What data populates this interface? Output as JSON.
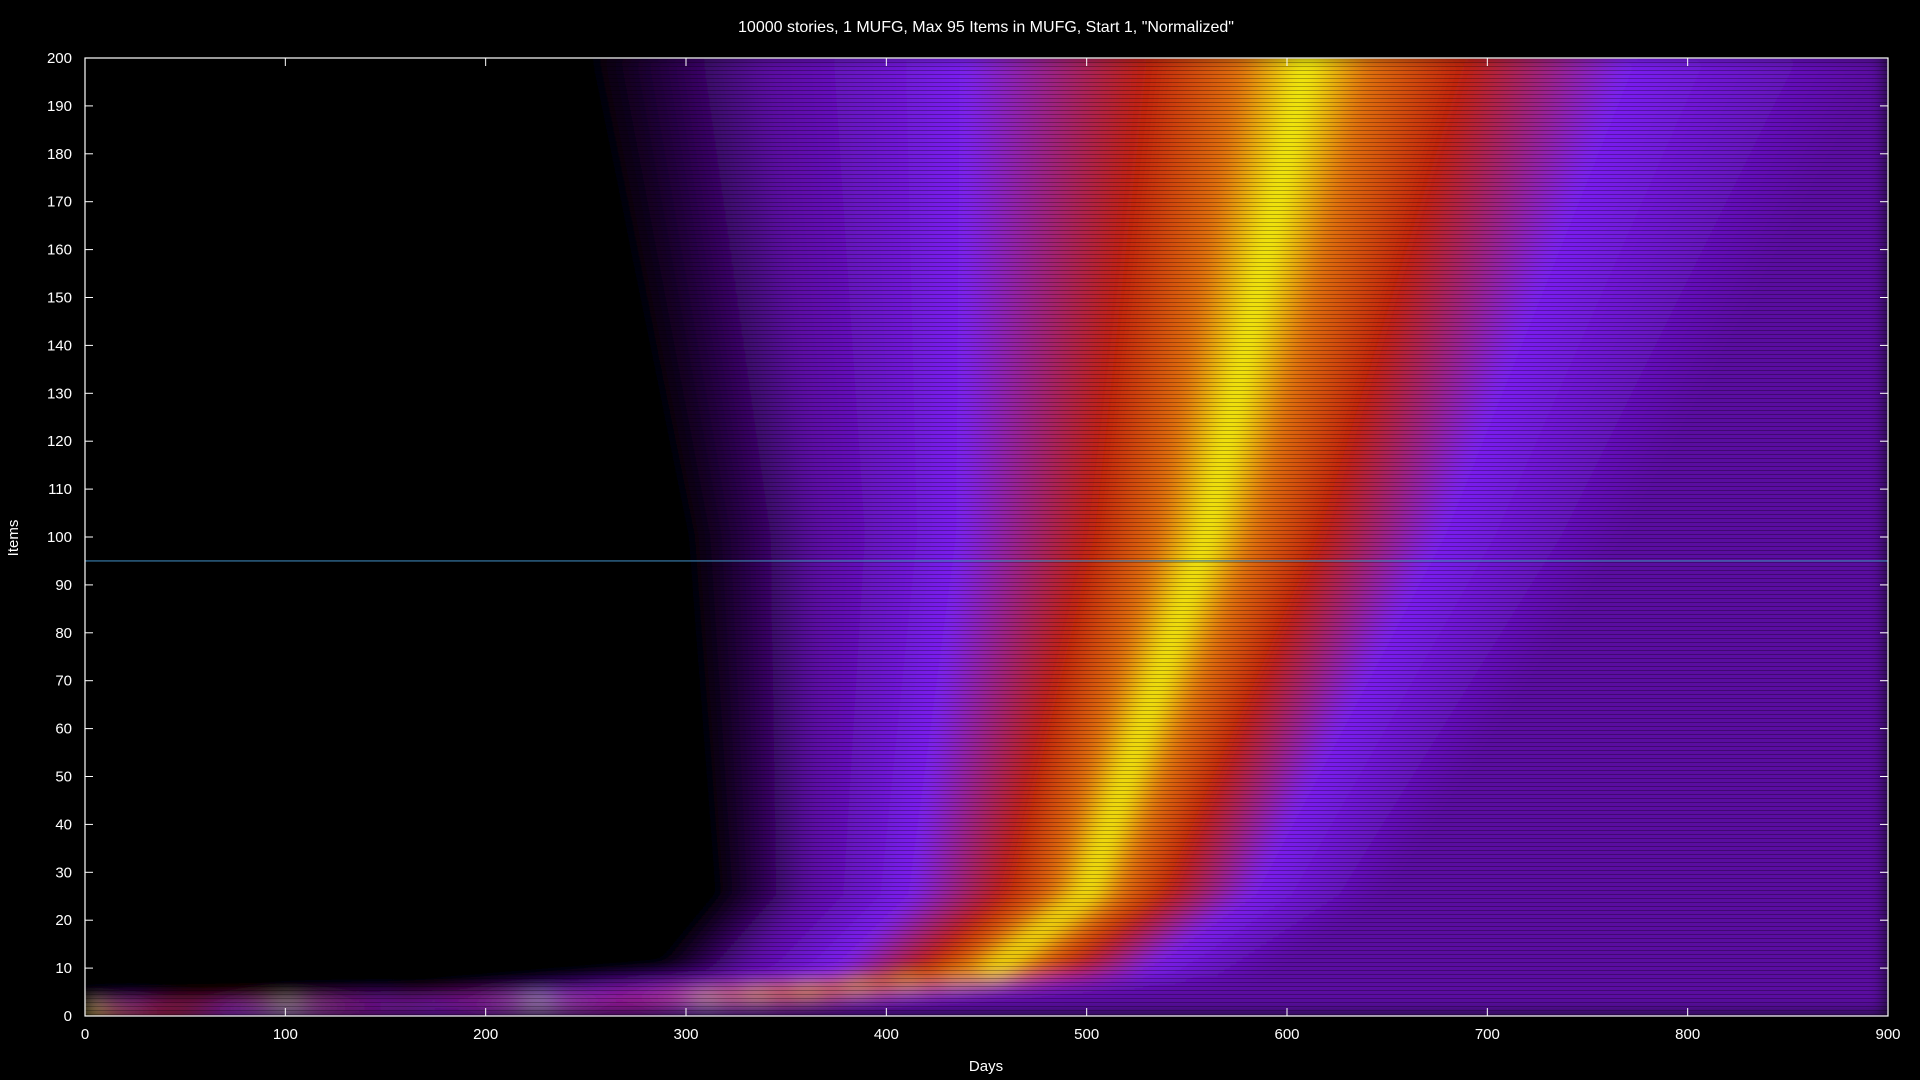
{
  "chart_data": {
    "type": "heatmap",
    "title": "10000 stories, 1 MUFG, Max 95 Items in MUFG, Start 1, \"Normalized\"",
    "xlabel": "Days",
    "ylabel": "Items",
    "xlim": [
      0,
      900
    ],
    "ylim": [
      0,
      200
    ],
    "xticks": [
      0,
      100,
      200,
      300,
      400,
      500,
      600,
      700,
      800,
      900
    ],
    "yticks": [
      0,
      10,
      20,
      30,
      40,
      50,
      60,
      70,
      80,
      90,
      100,
      110,
      120,
      130,
      140,
      150,
      160,
      170,
      180,
      190,
      200
    ],
    "grid": false,
    "colormap": [
      "#000000",
      "#5a0aa0",
      "#7a20f0",
      "#c02010",
      "#e07010",
      "#f0f010"
    ],
    "reference_line": {
      "y": 95,
      "color": "#3a7fb0"
    },
    "intensity_ridge": {
      "description": "density band rises with days",
      "points": [
        {
          "day": 0,
          "items": 1
        },
        {
          "day": 300,
          "items": 3
        },
        {
          "day": 450,
          "items": 8
        },
        {
          "day": 500,
          "items": 25
        },
        {
          "day": 560,
          "items": 100
        },
        {
          "day": 610,
          "items": 200
        }
      ]
    }
  }
}
